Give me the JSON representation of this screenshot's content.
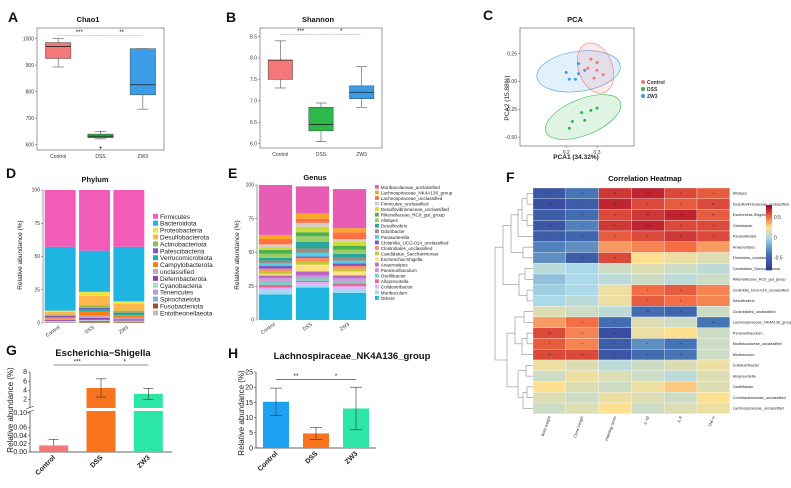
{
  "chart_data": [
    {
      "panel": "A",
      "type": "box",
      "title": "Chao1",
      "categories": [
        "Control",
        "DSS",
        "ZW3"
      ],
      "ylim": [
        580,
        1040
      ],
      "yticks": [
        600,
        700,
        800,
        900,
        1000
      ],
      "colors": [
        "#f4777a",
        "#2db84a",
        "#3b9de8"
      ],
      "boxes": [
        {
          "min": 893,
          "q1": 925,
          "median": 970,
          "q3": 985,
          "max": 1000,
          "outliers": []
        },
        {
          "min": 622,
          "q1": 626,
          "median": 632,
          "q3": 640,
          "max": 650,
          "outliers": [
            589
          ]
        },
        {
          "min": 734,
          "q1": 788,
          "median": 826,
          "q3": 962,
          "max": 962,
          "outliers": []
        }
      ],
      "significance": [
        {
          "from": 0,
          "to": 1,
          "label": "***",
          "y": 1012
        },
        {
          "from": 1,
          "to": 2,
          "label": "**",
          "y": 1012
        }
      ]
    },
    {
      "panel": "B",
      "type": "box",
      "title": "Shannon",
      "categories": [
        "Control",
        "DSS",
        "ZW3"
      ],
      "ylim": [
        5.9,
        8.7
      ],
      "yticks": [
        6.0,
        6.5,
        7.0,
        7.5,
        8.0,
        8.5
      ],
      "colors": [
        "#f4777a",
        "#2db84a",
        "#3b9de8"
      ],
      "boxes": [
        {
          "min": 7.3,
          "q1": 7.5,
          "median": 7.95,
          "q3": 7.95,
          "max": 8.4,
          "outliers": []
        },
        {
          "min": 6.05,
          "q1": 6.3,
          "median": 6.45,
          "q3": 6.85,
          "max": 6.95,
          "outliers": []
        },
        {
          "min": 6.85,
          "q1": 7.05,
          "median": 7.2,
          "q3": 7.35,
          "max": 7.8,
          "outliers": []
        }
      ],
      "significance": [
        {
          "from": 0,
          "to": 1,
          "label": "***",
          "y": 8.55
        },
        {
          "from": 1,
          "to": 2,
          "label": "*",
          "y": 8.55
        }
      ]
    },
    {
      "panel": "C",
      "type": "scatter",
      "title": "PCA",
      "xlabel": "PCA1 (34.32%)",
      "ylabel": "PCA2 (15.88%)",
      "xlim": [
        0.05,
        0.42
      ],
      "ylim": [
        -0.58,
        0.48
      ],
      "xticks": [
        "0.2",
        "0.3"
      ],
      "yticks": [
        "0.25",
        "0.00",
        "-0.25",
        "-0.50"
      ],
      "series": [
        {
          "name": "Control",
          "color": "#f4777a",
          "points": [
            [
              0.28,
              0.2
            ],
            [
              0.3,
              0.17
            ],
            [
              0.3,
              0.1
            ],
            [
              0.27,
              0.12
            ],
            [
              0.32,
              0.06
            ],
            [
              0.29,
              0.03
            ]
          ]
        },
        {
          "name": "DSS",
          "color": "#2db84a",
          "points": [
            [
              0.25,
              -0.28
            ],
            [
              0.28,
              -0.26
            ],
            [
              0.3,
              -0.24
            ],
            [
              0.26,
              -0.35
            ],
            [
              0.22,
              -0.36
            ],
            [
              0.21,
              -0.42
            ]
          ]
        },
        {
          "name": "ZW3",
          "color": "#3b9de8",
          "points": [
            [
              0.2,
              0.08
            ],
            [
              0.24,
              0.16
            ],
            [
              0.24,
              0.07
            ],
            [
              0.23,
              0.02
            ],
            [
              0.21,
              0.02
            ],
            [
              0.26,
              0.1
            ]
          ]
        }
      ]
    },
    {
      "panel": "D",
      "type": "stacked-bar",
      "title": "Phylum",
      "ylabel": "Relative abundance (%)",
      "categories": [
        "Control",
        "DSS",
        "ZW3"
      ],
      "ylim": [
        0,
        100
      ],
      "yticks": [
        0,
        25,
        50,
        75,
        100
      ],
      "series": [
        {
          "name": "Entotheonellaeota",
          "color": "#bfbfbf",
          "values": [
            0.3,
            0.3,
            0.3
          ]
        },
        {
          "name": "Fusobacteriota",
          "color": "#a0522d",
          "values": [
            0.3,
            1.0,
            0.5
          ]
        },
        {
          "name": "Spirochaetota",
          "color": "#7fb3d5",
          "values": [
            0.3,
            0.3,
            0.3
          ]
        },
        {
          "name": "Tenericutes",
          "color": "#b39ddb",
          "values": [
            0.3,
            0.3,
            0.3
          ]
        },
        {
          "name": "Cyanobacteria",
          "color": "#a9dfbf",
          "values": [
            0.4,
            0.5,
            0.4
          ]
        },
        {
          "name": "Deferribacterota",
          "color": "#8e44ad",
          "values": [
            0.7,
            1.5,
            1.0
          ]
        },
        {
          "name": "unclassified",
          "color": "#c8a2c8",
          "values": [
            1.0,
            1.5,
            1.0
          ]
        },
        {
          "name": "Campylobacterota",
          "color": "#ff7f0e",
          "values": [
            0.5,
            3.0,
            2.0
          ]
        },
        {
          "name": "Verrucomicrobiota",
          "color": "#20b2aa",
          "values": [
            0.5,
            1.5,
            1.0
          ]
        },
        {
          "name": "Patescibacteria",
          "color": "#7e57c2",
          "values": [
            1.0,
            1.5,
            1.0
          ]
        },
        {
          "name": "Actinobacteriota",
          "color": "#8bc34a",
          "values": [
            1.0,
            2.0,
            1.5
          ]
        },
        {
          "name": "Desulfobacterota",
          "color": "#ffb74d",
          "values": [
            2.0,
            7.0,
            5.0
          ]
        },
        {
          "name": "Proteobacteria",
          "color": "#f0e442",
          "values": [
            1.0,
            3.0,
            2.0
          ]
        },
        {
          "name": "Bacteroidota",
          "color": "#1fb5e3",
          "values": [
            48.0,
            31.0,
            41.0
          ]
        },
        {
          "name": "Firmicutes",
          "color": "#f25bb8",
          "values": [
            42.7,
            45.6,
            42.7
          ]
        }
      ]
    },
    {
      "panel": "E",
      "type": "stacked-bar",
      "title": "Genus",
      "ylabel": "Relative abundance (%)",
      "categories": [
        "Control",
        "DSS",
        "ZW3"
      ],
      "ylim": [
        0,
        100
      ],
      "yticks": [
        0,
        25,
        50,
        75,
        100
      ],
      "series": [
        {
          "name": "Others",
          "color": "#1fb5e3",
          "values": [
            19,
            24,
            20
          ]
        },
        {
          "name": "Muribaculum",
          "color": "#9fdcf0",
          "values": [
            3,
            2,
            3
          ]
        },
        {
          "name": "Colidextribacter",
          "color": "#d9b3ff",
          "values": [
            2,
            2,
            2
          ]
        },
        {
          "name": "Alloprevotella",
          "color": "#f06292",
          "values": [
            2,
            1,
            2
          ]
        },
        {
          "name": "Oscillibacter",
          "color": "#80cbc4",
          "values": [
            3,
            2,
            2
          ]
        },
        {
          "name": "Paramuribaculum",
          "color": "#ce93d8",
          "values": [
            2,
            2,
            2
          ]
        },
        {
          "name": "Anaerostipes",
          "color": "#ba68c8",
          "values": [
            2,
            3,
            2
          ]
        },
        {
          "name": "Escherichia-Shigella",
          "color": "#ffe082",
          "values": [
            1,
            5,
            3
          ]
        },
        {
          "name": "Candidatus_Saccharimonas",
          "color": "#c0ca33",
          "values": [
            2,
            2,
            2
          ]
        },
        {
          "name": "Clostridiales_unclassified",
          "color": "#ff8a65",
          "values": [
            2,
            3,
            2
          ]
        },
        {
          "name": "Clostridia_UCG-014_unclassified",
          "color": "#7e57c2",
          "values": [
            2,
            1,
            2
          ]
        },
        {
          "name": "Parasutterella",
          "color": "#4dd0e1",
          "values": [
            2,
            3,
            2
          ]
        },
        {
          "name": "Odoribacter",
          "color": "#a1887f",
          "values": [
            2,
            3,
            2
          ]
        },
        {
          "name": "Desulfovibrio",
          "color": "#26a69a",
          "values": [
            2,
            5,
            3
          ]
        },
        {
          "name": "Alistipes",
          "color": "#9ccc65",
          "values": [
            3,
            4,
            3
          ]
        },
        {
          "name": "Rikenellaceae_RC9_gut_group",
          "color": "#4caf50",
          "values": [
            3,
            3,
            3
          ]
        },
        {
          "name": "Desulfovibrionaceae_unclassified",
          "color": "#cddc39",
          "values": [
            2,
            4,
            3
          ]
        },
        {
          "name": "Firmicutes_unclassified",
          "color": "#d7ccc8",
          "values": [
            2,
            3,
            2
          ]
        },
        {
          "name": "Lachnospiraceae_unclassified",
          "color": "#ff7043",
          "values": [
            4,
            3,
            5
          ]
        },
        {
          "name": "Lachnospiraceae_NK4A136_group",
          "color": "#f9a825",
          "values": [
            3,
            4,
            3
          ]
        },
        {
          "name": "Muribaculaceae_unclassified",
          "color": "#e75db5",
          "values": [
            37,
            20,
            29
          ]
        }
      ]
    },
    {
      "panel": "F",
      "type": "heatmap",
      "title": "Correlation Heatmap",
      "columns": [
        "Body weight",
        "Clone Length",
        "Histology score",
        "IL-1β",
        "IL-6",
        "TNF-α"
      ],
      "rows": [
        "Alistipes",
        "Desulfovibrionaceae_unclassified",
        "Escherichia-Shigella",
        "Odoribacter",
        "Parasutterella",
        "Anaerostipes",
        "Firmicutes_unclassified",
        "Candidatus_Saccharimonas",
        "Rikenellaceae_RC9_gut_group",
        "Clostridia_UCG-014_unclassified",
        "Desulfovibrio",
        "Clostridiales_unclassified",
        "Lachnospiraceae_NK4A136_group",
        "Paramuribaculum",
        "Muribaculaceae_unclassified",
        "Muribaculum",
        "Colidextribacter",
        "Alloprevotella",
        "Oscillibacter",
        "Coriobacteriaceae_unclassified",
        "Lachnospiraceae_unclassified"
      ],
      "values": [
        [
          -0.6,
          -0.4,
          0.65,
          0.7,
          0.6,
          0.55
        ],
        [
          -0.65,
          -0.55,
          0.7,
          0.6,
          0.55,
          0.6
        ],
        [
          -0.55,
          -0.45,
          0.6,
          0.65,
          0.7,
          0.55
        ],
        [
          -0.6,
          -0.35,
          0.65,
          0.7,
          0.6,
          0.6
        ],
        [
          -0.55,
          -0.5,
          0.55,
          0.6,
          0.65,
          0.6
        ],
        [
          -0.35,
          -0.3,
          0.4,
          0.45,
          0.5,
          0.4
        ],
        [
          -0.3,
          -0.55,
          0.6,
          0.25,
          0.2,
          0.15
        ],
        [
          0.05,
          0.0,
          0.1,
          0.15,
          0.1,
          0.05
        ],
        [
          -0.1,
          0.0,
          0.05,
          0.1,
          0.05,
          0.1
        ],
        [
          -0.05,
          0.0,
          0.2,
          0.5,
          0.55,
          0.45
        ],
        [
          0.0,
          0.05,
          0.2,
          0.55,
          0.5,
          0.45
        ],
        [
          0.15,
          0.1,
          0.05,
          -0.45,
          -0.5,
          0.1
        ],
        [
          0.4,
          0.5,
          -0.45,
          0.15,
          0.1,
          -0.4
        ],
        [
          0.6,
          0.45,
          -0.65,
          0.2,
          0.25,
          0.1
        ],
        [
          0.55,
          0.45,
          -0.55,
          -0.3,
          -0.4,
          0.1
        ],
        [
          0.6,
          0.6,
          -0.6,
          -0.45,
          -0.4,
          0.1
        ],
        [
          0.2,
          0.15,
          0.05,
          0.1,
          0.15,
          0.2
        ],
        [
          0.1,
          0.2,
          0.15,
          0.1,
          0.05,
          0.15
        ],
        [
          0.25,
          0.15,
          0.1,
          0.2,
          0.3,
          0.15
        ],
        [
          0.15,
          0.1,
          0.2,
          0.15,
          0.1,
          0.25
        ],
        [
          0.1,
          0.15,
          0.25,
          0.1,
          0.15,
          0.2
        ]
      ],
      "stars": [
        [
          "*",
          "**",
          "**",
          "**",
          "*",
          "*"
        ],
        [
          "**",
          "*",
          "**",
          "*",
          "*",
          "**"
        ],
        [
          "*",
          "*",
          "**",
          "**",
          "**",
          "**"
        ],
        [
          "**",
          "*",
          "*",
          "**",
          "*",
          "*"
        ],
        [
          "*",
          "*",
          "*",
          "*",
          "*",
          "*"
        ],
        [
          "",
          "",
          "",
          "",
          "",
          ""
        ],
        [
          "",
          "**",
          "**",
          "",
          "",
          ""
        ],
        [
          "",
          "",
          "",
          "",
          "",
          ""
        ],
        [
          "",
          "",
          "",
          "",
          "",
          ""
        ],
        [
          "",
          "",
          "",
          "*",
          "*",
          ""
        ],
        [
          "",
          "",
          "",
          "*",
          "*",
          ""
        ],
        [
          "",
          "",
          "",
          "**",
          "*",
          ""
        ],
        [
          "",
          "*",
          "*",
          "",
          "",
          "**"
        ],
        [
          "**",
          "*",
          "**",
          "",
          "",
          ""
        ],
        [
          "*",
          "*",
          "*",
          "*",
          "**",
          ""
        ],
        [
          "**",
          "**",
          "*",
          "*",
          "*",
          ""
        ],
        [
          "",
          "",
          "",
          "",
          "",
          ""
        ],
        [
          "",
          "",
          "",
          "",
          "",
          ""
        ],
        [
          "",
          "",
          "",
          "",
          "",
          ""
        ],
        [
          "",
          "",
          "",
          "",
          "",
          ""
        ],
        [
          "",
          "",
          "",
          "",
          "",
          ""
        ]
      ],
      "scale_ticks": [
        "0.5",
        "0",
        "-0.5"
      ],
      "scale_range": [
        -0.8,
        0.8
      ]
    },
    {
      "panel": "G",
      "type": "bar",
      "title": "Escherichia−Shigella",
      "ylabel": "Relative abundance (%)",
      "categories": [
        "Control",
        "DSS",
        "ZW3"
      ],
      "values": [
        0.016,
        4.5,
        3.2
      ],
      "errors": [
        0.015,
        2.0,
        1.2
      ],
      "colors": [
        "#f4777a",
        "#f7731e",
        "#2ce6a6"
      ],
      "axis_break": {
        "lower": [
          0,
          0.1
        ],
        "upper": [
          0.1,
          8
        ]
      },
      "yticks_lower": [
        "0.00",
        "0.02",
        "0.04",
        "0.06",
        "0.10"
      ],
      "yticks_upper": [
        "0.1",
        "2",
        "4",
        "6",
        "8"
      ],
      "significance": [
        {
          "from": 0,
          "to": 1,
          "label": "***"
        },
        {
          "from": 1,
          "to": 2,
          "label": "*"
        }
      ]
    },
    {
      "panel": "H",
      "type": "bar",
      "title": "Lachnospiraceae_NK4A136_group",
      "ylabel": "Relative abundance (%)",
      "categories": [
        "Control",
        "DSS",
        "ZW3"
      ],
      "values": [
        15.2,
        4.8,
        13.0
      ],
      "errors": [
        4.5,
        2.0,
        7.0
      ],
      "colors": [
        "#1da1f2",
        "#f7731e",
        "#2ce6a6"
      ],
      "ylim": [
        0,
        25
      ],
      "yticks": [
        "0",
        "5",
        "10",
        "15",
        "20",
        "25"
      ],
      "significance": [
        {
          "from": 0,
          "to": 1,
          "label": "**"
        },
        {
          "from": 1,
          "to": 2,
          "label": "*"
        }
      ]
    }
  ]
}
